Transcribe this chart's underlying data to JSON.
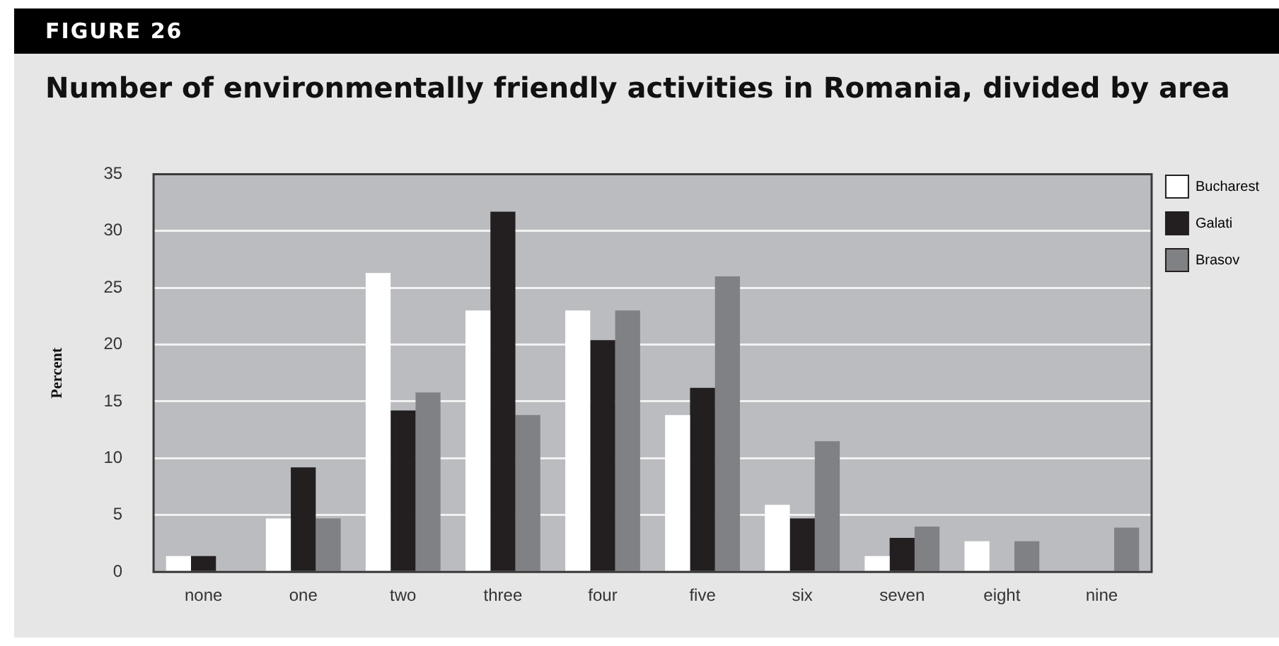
{
  "chart_data": {
    "type": "bar",
    "title": "Number of environmentally friendly activities in Romania, divided by area",
    "annotations": [
      "FIGURE 26"
    ],
    "ylabel": "Percent",
    "categories": [
      "none",
      "one",
      "two",
      "three",
      "four",
      "five",
      "six",
      "seven",
      "eight",
      "nine"
    ],
    "series": [
      {
        "name": "Bucharest",
        "color": "#ffffff",
        "values": [
          1.4,
          4.7,
          26.3,
          23.0,
          23.0,
          13.8,
          5.9,
          1.4,
          2.7,
          0
        ]
      },
      {
        "name": "Galati",
        "color": "#231f20",
        "values": [
          1.4,
          9.2,
          14.2,
          31.7,
          20.4,
          16.2,
          4.7,
          3.0,
          0,
          0
        ]
      },
      {
        "name": "Brasov",
        "color": "#808184",
        "values": [
          0,
          4.7,
          15.8,
          13.8,
          23.0,
          26.0,
          11.5,
          4.0,
          2.7,
          3.9
        ]
      }
    ],
    "ylim": [
      0,
      35
    ],
    "yticks": [
      0,
      5,
      10,
      15,
      20,
      25,
      30,
      35
    ],
    "grid": "y",
    "legend": "top right"
  }
}
